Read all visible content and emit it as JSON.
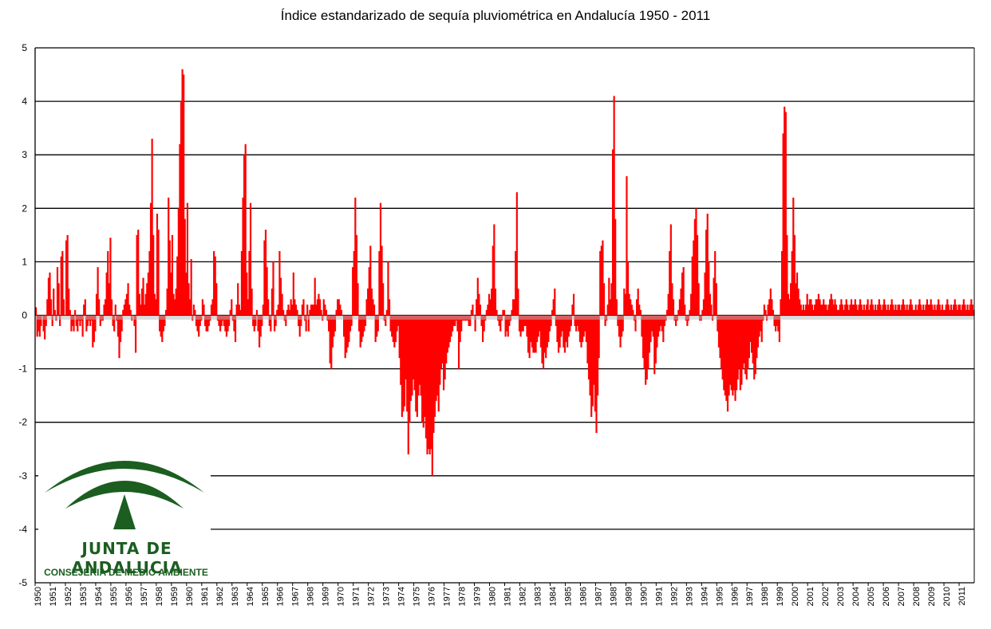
{
  "chart_data": {
    "type": "bar",
    "title": "Índice estandarizado de sequía pluviométrica en Andalucía 1950 - 2011",
    "xlabel": "",
    "ylabel": "",
    "ylim": [
      -5,
      5
    ],
    "yticks": [
      5,
      4,
      3,
      2,
      1,
      0,
      -1,
      -2,
      -3,
      -4,
      -5
    ],
    "grid": true,
    "bar_color": "#ff0000",
    "x_tick_labels": [
      "1950",
      "1951",
      "1952",
      "1953",
      "1954",
      "1955",
      "1956",
      "1957",
      "1958",
      "1959",
      "1960",
      "1961",
      "1962",
      "1963",
      "1964",
      "1965",
      "1966",
      "1967",
      "1968",
      "1969",
      "1970",
      "1971",
      "1972",
      "1973",
      "1974",
      "1975",
      "1976",
      "1977",
      "1978",
      "1979",
      "1980",
      "1981",
      "1982",
      "1983",
      "1984",
      "1985",
      "1986",
      "1987",
      "1988",
      "1989",
      "1990",
      "1991",
      "1992",
      "1993",
      "1994",
      "1995",
      "1996",
      "1997",
      "1998",
      "1999",
      "2000",
      "2001",
      "2002",
      "2003",
      "2004",
      "2005",
      "2006",
      "2007",
      "2008",
      "2009",
      "2010",
      "2011"
    ],
    "monthly_index": {
      "1950": [
        0.15,
        -0.4,
        -0.3,
        -0.4,
        -0.2,
        0.0,
        -0.3,
        -0.45,
        -0.2,
        0.3,
        0.7,
        0.8
      ],
      "1951": [
        0.3,
        -0.2,
        0.5,
        0.1,
        -0.1,
        0.9,
        0.6,
        -0.2,
        1.1,
        1.2,
        0.3,
        0.0
      ],
      "1952": [
        1.4,
        1.5,
        0.5,
        0.1,
        -0.3,
        -0.2,
        -0.3,
        0.1,
        -0.2,
        -0.3,
        -0.1,
        -0.2
      ],
      "1953": [
        -0.1,
        -0.4,
        0.2,
        0.3,
        -0.3,
        -0.2,
        -0.1,
        -0.2,
        -0.1,
        -0.6,
        -0.5,
        -0.3
      ],
      "1954": [
        0.4,
        0.9,
        0.3,
        -0.2,
        -0.1,
        -0.1,
        0.2,
        0.3,
        0.8,
        1.2,
        0.6,
        1.45
      ],
      "1955": [
        0.3,
        -0.2,
        -0.3,
        0.2,
        -0.1,
        -0.4,
        -0.8,
        -0.5,
        -0.3,
        0.1,
        0.2,
        0.3
      ],
      "1956": [
        0.4,
        0.6,
        0.2,
        0.1,
        -0.1,
        0.0,
        -0.2,
        -0.7,
        1.5,
        1.6,
        0.4,
        0.2
      ],
      "1957": [
        0.5,
        0.7,
        0.2,
        0.4,
        0.6,
        0.8,
        1.2,
        2.1,
        3.3,
        1.5,
        0.4,
        0.3
      ],
      "1958": [
        1.9,
        1.6,
        -0.3,
        -0.4,
        -0.5,
        -0.3,
        -0.2,
        0.1,
        0.5,
        2.2,
        1.4,
        0.8
      ],
      "1959": [
        1.5,
        0.4,
        0.3,
        0.5,
        1.1,
        2.0,
        3.2,
        4.0,
        4.6,
        4.5,
        1.8,
        0.8
      ],
      "1960": [
        2.1,
        0.6,
        0.3,
        1.05,
        -0.1,
        0.2,
        0.1,
        -0.2,
        -0.3,
        -0.4,
        -0.2,
        -0.1
      ],
      "1961": [
        0.3,
        0.2,
        -0.2,
        -0.3,
        -0.3,
        -0.2,
        -0.1,
        0.2,
        0.3,
        1.2,
        1.1,
        0.6
      ],
      "1962": [
        -0.1,
        -0.2,
        -0.3,
        -0.2,
        -0.1,
        -0.2,
        -0.3,
        -0.4,
        -0.3,
        -0.2,
        0.1,
        0.3
      ],
      "1963": [
        -0.1,
        -0.3,
        -0.5,
        0.2,
        0.6,
        0.2,
        0.1,
        1.2,
        2.2,
        3.0,
        3.2,
        0.8
      ],
      "1964": [
        0.3,
        1.2,
        2.1,
        0.5,
        -0.2,
        -0.3,
        -0.2,
        0.1,
        -0.3,
        -0.6,
        -0.4,
        -0.2
      ],
      "1965": [
        0.2,
        1.4,
        1.6,
        0.9,
        0.3,
        -0.2,
        -0.3,
        0.5,
        1.0,
        -0.3,
        -0.2,
        0.1
      ],
      "1966": [
        0.2,
        1.2,
        0.7,
        0.4,
        0.1,
        -0.1,
        -0.2,
        0.1,
        0.2,
        0.1,
        0.3,
        0.2
      ],
      "1967": [
        0.8,
        0.3,
        0.2,
        0.1,
        -0.2,
        -0.4,
        -0.2,
        0.2,
        0.3,
        -0.1,
        -0.3,
        0.2
      ],
      "1968": [
        -0.3,
        0.1,
        0.2,
        0.2,
        0.2,
        0.7,
        0.2,
        0.3,
        0.4,
        0.3,
        0.1,
        -0.1
      ],
      "1969": [
        0.3,
        0.2,
        0.1,
        -0.1,
        -0.3,
        -0.9,
        -1.0,
        -0.6,
        -0.4,
        -0.3,
        0.1,
        0.3
      ],
      "1970": [
        0.3,
        0.2,
        0.1,
        0.0,
        -0.4,
        -0.8,
        -0.7,
        -0.6,
        -0.5,
        -0.3,
        -0.2,
        0.9
      ],
      "1971": [
        1.2,
        2.2,
        1.5,
        0.6,
        -0.3,
        -0.6,
        -0.5,
        -0.4,
        -0.3,
        -0.2,
        0.3,
        0.5
      ],
      "1972": [
        0.9,
        1.3,
        0.5,
        0.3,
        0.2,
        -0.5,
        -0.4,
        -0.3,
        1.2,
        2.1,
        1.3,
        0.6
      ],
      "1973": [
        -0.1,
        -0.2,
        0.1,
        1.0,
        0.3,
        -0.3,
        -0.4,
        -0.5,
        -0.6,
        -0.5,
        -0.3,
        -0.2
      ],
      "1974": [
        -0.8,
        -1.3,
        -1.9,
        -1.8,
        -1.7,
        -1.2,
        -1.8,
        -2.6,
        -2.0,
        -1.6,
        -1.5,
        -1.2
      ],
      "1975": [
        -1.4,
        -1.8,
        -1.9,
        -1.5,
        -1.3,
        -1.5,
        -2.0,
        -2.1,
        -1.9,
        -2.3,
        -2.6,
        -2.5
      ],
      "1976": [
        -2.6,
        -2.5,
        -3.0,
        -2.2,
        -1.9,
        -1.6,
        -1.5,
        -1.8,
        -1.3,
        -1.0,
        -0.9,
        -1.4
      ],
      "1977": [
        -1.2,
        -0.9,
        -0.7,
        -0.6,
        -0.5,
        -0.4,
        -0.3,
        -0.2,
        -0.2,
        -0.1,
        -0.3,
        -1.0
      ],
      "1978": [
        -0.5,
        -0.3,
        -0.1,
        -0.1,
        -0.1,
        -0.1,
        -0.1,
        -0.2,
        -0.2,
        0.1,
        0.2,
        0.0
      ],
      "1979": [
        -0.3,
        0.3,
        0.7,
        0.4,
        0.2,
        -0.2,
        -0.5,
        -0.3,
        -0.1,
        0.1,
        0.2,
        0.4
      ],
      "1980": [
        0.3,
        0.5,
        1.3,
        1.7,
        0.5,
        0.1,
        -0.1,
        -0.2,
        -0.3,
        -0.1,
        0.1,
        0.1
      ],
      "1981": [
        -0.4,
        -0.3,
        -0.4,
        -0.2,
        -0.1,
        0.1,
        0.3,
        0.3,
        1.2,
        2.3,
        0.5,
        -0.3
      ],
      "1982": [
        -0.4,
        -0.3,
        -0.3,
        -0.2,
        -0.2,
        -0.4,
        -0.7,
        -0.8,
        -0.5,
        -0.6,
        -0.7,
        -0.7
      ],
      "1983": [
        -0.7,
        -0.5,
        -0.4,
        -0.3,
        -0.6,
        -0.9,
        -1.0,
        -0.7,
        -0.8,
        -0.6,
        -0.5,
        -0.3
      ],
      "1984": [
        -0.2,
        0.1,
        0.3,
        0.5,
        -0.2,
        -0.5,
        -0.7,
        -0.6,
        -0.4,
        -0.3,
        -0.6,
        -0.7
      ],
      "1985": [
        -0.5,
        -0.6,
        -0.4,
        -0.3,
        -0.2,
        0.2,
        0.4,
        -0.2,
        -0.3,
        -0.2,
        -0.3,
        -0.5
      ],
      "1986": [
        -0.6,
        -0.5,
        -0.4,
        -0.3,
        -0.5,
        -0.9,
        -1.2,
        -1.5,
        -1.9,
        -1.7,
        -1.3,
        -1.8
      ],
      "1987": [
        -2.2,
        -1.5,
        -0.8,
        1.2,
        1.3,
        1.4,
        0.6,
        -0.2,
        -0.1,
        0.2,
        0.7,
        0.3
      ],
      "1988": [
        0.6,
        3.1,
        4.1,
        1.8,
        0.3,
        -0.2,
        -0.4,
        -0.6,
        -0.4,
        -0.3,
        0.5,
        0.4
      ],
      "1989": [
        2.6,
        1.0,
        0.4,
        0.3,
        0.2,
        0.1,
        -0.1,
        -0.3,
        0.3,
        0.5,
        0.2,
        0.1
      ],
      "1990": [
        -0.4,
        -0.8,
        -1.0,
        -1.3,
        -1.2,
        -1.0,
        -0.7,
        -0.5,
        -0.3,
        -0.4,
        -1.1,
        -0.9
      ],
      "1991": [
        -0.6,
        -0.4,
        -0.3,
        -0.2,
        -0.3,
        -0.5,
        -0.2,
        -0.1,
        0.1,
        0.4,
        1.2,
        1.7
      ],
      "1992": [
        0.6,
        0.3,
        -0.1,
        -0.2,
        -0.1,
        0.1,
        0.3,
        0.5,
        0.8,
        0.9,
        0.2,
        -0.1
      ],
      "1993": [
        -0.2,
        -0.1,
        0.1,
        0.4,
        1.1,
        1.4,
        1.8,
        2.0,
        1.5,
        0.6,
        -0.1,
        -0.1
      ],
      "1994": [
        0.1,
        0.3,
        0.8,
        1.6,
        1.9,
        1.0,
        0.4,
        0.2,
        -0.1,
        0.7,
        1.2,
        0.6
      ],
      "1995": [
        -0.3,
        -0.6,
        -0.8,
        -1.0,
        -1.2,
        -1.4,
        -1.5,
        -1.6,
        -1.8,
        -1.5,
        -1.3,
        -1.4
      ],
      "1996": [
        -1.5,
        -1.4,
        -1.6,
        -1.4,
        -1.2,
        -1.0,
        -1.4,
        -1.3,
        -1.0,
        -0.9,
        -1.1,
        -1.2
      ],
      "1997": [
        -1.0,
        -0.8,
        -0.5,
        -0.7,
        -0.9,
        -1.2,
        -1.1,
        -0.8,
        -0.6,
        -0.4,
        -0.3,
        -0.5
      ],
      "1998": [
        -0.1,
        0.2,
        0.1,
        -0.1,
        0.2,
        0.3,
        0.5,
        0.3,
        0.1,
        -0.2,
        -0.3,
        -0.2
      ],
      "1999": [
        -0.3,
        -0.5,
        0.3,
        1.2,
        3.4,
        3.9,
        3.8,
        1.5,
        0.4,
        0.3,
        0.6,
        1.2
      ],
      "2000": [
        2.2,
        1.5,
        0.6,
        0.8,
        0.5,
        0.3,
        0.2,
        0.1,
        0.2,
        0.1,
        0.2,
        0.4
      ],
      "2001": [
        0.2,
        0.3,
        0.3,
        0.2,
        0.1,
        0.2,
        0.3,
        0.3,
        0.4,
        0.3,
        0.2,
        0.2
      ],
      "2002": [
        0.3,
        0.2,
        0.2,
        0.1,
        0.2,
        0.3,
        0.4,
        0.3,
        0.2,
        0.3,
        0.2,
        0.1
      ],
      "2003": [
        0.1,
        0.2,
        0.3,
        0.2,
        0.1,
        0.2,
        0.3,
        0.2,
        0.1,
        0.2,
        0.3,
        0.2
      ],
      "2004": [
        0.2,
        0.3,
        0.2,
        0.1,
        0.2,
        0.3,
        0.2,
        0.1,
        0.2,
        0.1,
        0.2,
        0.3
      ],
      "2005": [
        0.1,
        0.2,
        0.3,
        0.2,
        0.1,
        0.2,
        0.1,
        0.2,
        0.3,
        0.2,
        0.1,
        0.2
      ],
      "2006": [
        0.3,
        0.2,
        0.1,
        0.2,
        0.1,
        0.2,
        0.3,
        0.2,
        0.1,
        0.2,
        0.1,
        0.2
      ],
      "2007": [
        0.2,
        0.1,
        0.2,
        0.3,
        0.2,
        0.1,
        0.2,
        0.1,
        0.2,
        0.3,
        0.2,
        0.1
      ],
      "2008": [
        0.1,
        0.2,
        0.1,
        0.2,
        0.3,
        0.2,
        0.1,
        0.2,
        0.1,
        0.2,
        0.3,
        0.2
      ],
      "2009": [
        0.2,
        0.3,
        0.2,
        0.1,
        0.2,
        0.1,
        0.2,
        0.3,
        0.2,
        0.1,
        0.2,
        0.1
      ],
      "2010": [
        0.1,
        0.2,
        0.3,
        0.2,
        0.1,
        0.2,
        0.1,
        0.2,
        0.3,
        0.2,
        0.1,
        0.2
      ],
      "2011": [
        0.2,
        0.1,
        0.2,
        0.3,
        0.2,
        0.1,
        0.2,
        0.1,
        0.2,
        0.3,
        0.2,
        0.1
      ]
    }
  },
  "logo": {
    "line1": "JUNTA DE ANDALUCIA",
    "line2": "CONSEJERIA DE MEDIO AMBIENTE",
    "color": "#1b5e20"
  }
}
